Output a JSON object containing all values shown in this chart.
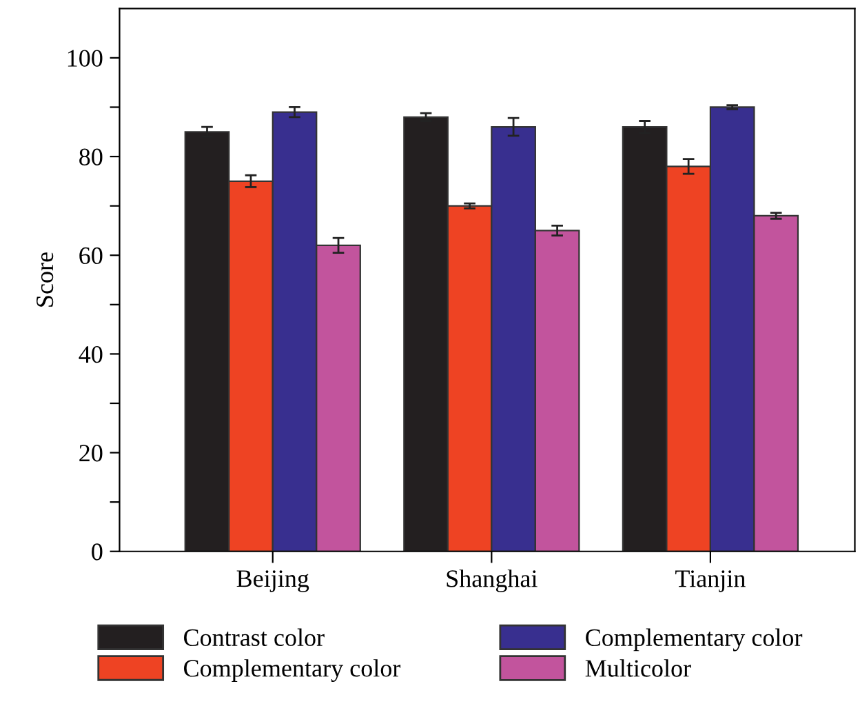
{
  "chart_data": {
    "type": "bar",
    "ylabel": "Score",
    "categories": [
      "Beijing",
      "Shanghai",
      "Tianjin"
    ],
    "series": [
      {
        "name": "Contrast color",
        "color": "#231f20",
        "values": [
          85,
          88,
          86
        ],
        "errors": [
          1,
          0.8,
          1.2
        ]
      },
      {
        "name": "Complementary color",
        "color": "#ee4323",
        "values": [
          75,
          70,
          78
        ],
        "errors": [
          1.2,
          0.5,
          1.5
        ]
      },
      {
        "name": "Complementary color",
        "color": "#382f8f",
        "values": [
          89,
          86,
          90
        ],
        "errors": [
          1,
          1.8,
          0.4
        ]
      },
      {
        "name": "Multicolor",
        "color": "#c2549d",
        "values": [
          62,
          65,
          68
        ],
        "errors": [
          1.5,
          1,
          0.6
        ]
      }
    ],
    "ylim": [
      0,
      110
    ],
    "yticks": [
      0,
      {
        "value": 10,
        "label": null
      },
      20,
      {
        "value": 30,
        "label": null
      },
      40,
      {
        "value": 50,
        "label": null
      },
      60,
      {
        "value": 70,
        "label": null
      },
      80,
      {
        "value": 90,
        "label": null
      },
      100
    ],
    "grid": false,
    "legend": "bottom"
  }
}
